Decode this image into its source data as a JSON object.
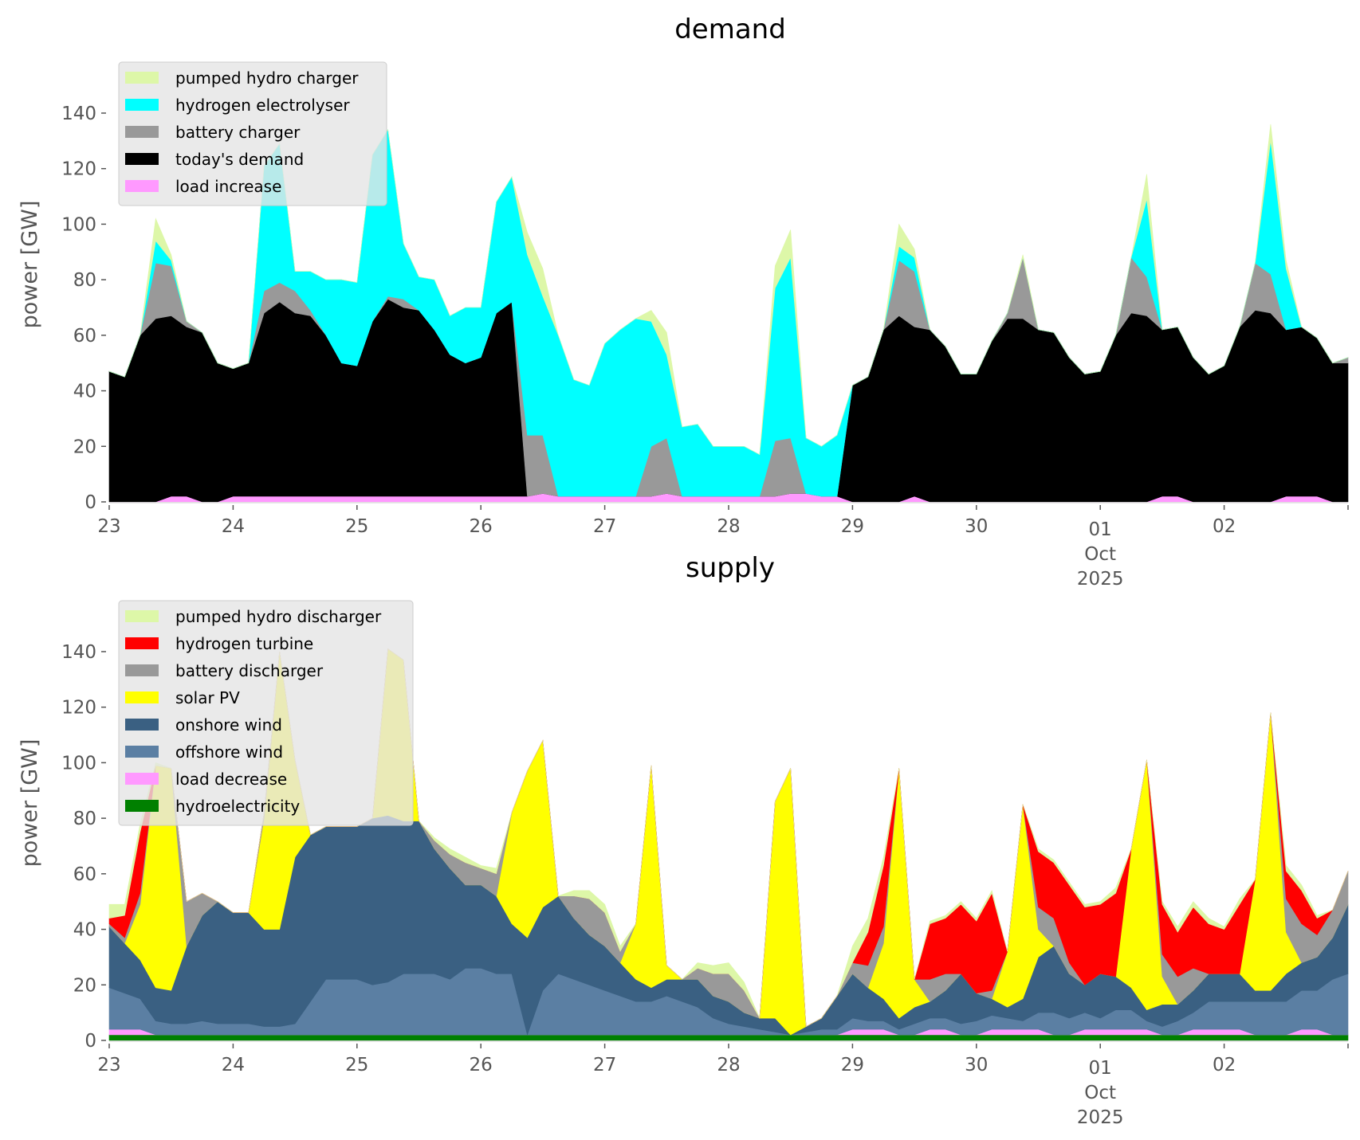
{
  "chart_data": [
    {
      "type": "area",
      "stacked": true,
      "title": "demand",
      "xlabel": "",
      "ylabel": "power [GW]",
      "ylim": [
        0,
        145
      ],
      "yticks": [
        "0",
        "20",
        "40",
        "60",
        "80",
        "100",
        "120",
        "140"
      ],
      "xticks": [
        "23",
        "24",
        "25",
        "26",
        "27",
        "28",
        "29",
        "30",
        "01",
        "02"
      ],
      "xtick_sub": {
        "01": [
          "Oct",
          "2025"
        ]
      },
      "x_resolution": "3h",
      "x_start": "2025-09-23 00:00",
      "legend_position": "top-left",
      "grid": false,
      "series": [
        {
          "name": "load increase",
          "color": "#ff99ff",
          "values": [
            0,
            0,
            0,
            0,
            2,
            2,
            0,
            0,
            2,
            2,
            2,
            2,
            2,
            2,
            2,
            2,
            2,
            2,
            2,
            2,
            2,
            2,
            2,
            2,
            2,
            2,
            2,
            2,
            3,
            2,
            2,
            2,
            2,
            2,
            2,
            2,
            3,
            2,
            2,
            2,
            2,
            2,
            2,
            2,
            3,
            3,
            2,
            2,
            0,
            0,
            0,
            0,
            2,
            0,
            0,
            0,
            0,
            0,
            0,
            0,
            0,
            0,
            0,
            0,
            0,
            0,
            0,
            0,
            2,
            2,
            0,
            0,
            0,
            0,
            0,
            0,
            2,
            2,
            2,
            0,
            0
          ]
        },
        {
          "name": "today's demand",
          "color": "#000000",
          "values": [
            47,
            45,
            60,
            66,
            65,
            61,
            61,
            50,
            46,
            48,
            66,
            70,
            66,
            65,
            58,
            48,
            47,
            63,
            71,
            68,
            67,
            60,
            51,
            48,
            50,
            66,
            70,
            0,
            0,
            0,
            0,
            0,
            0,
            0,
            0,
            0,
            0,
            0,
            0,
            0,
            0,
            0,
            0,
            0,
            0,
            0,
            0,
            0,
            42,
            45,
            62,
            67,
            61,
            62,
            56,
            46,
            46,
            58,
            66,
            66,
            62,
            61,
            52,
            46,
            47,
            60,
            68,
            67,
            60,
            61,
            52,
            46,
            49,
            63,
            69,
            68,
            60,
            61,
            57,
            50,
            50
          ]
        },
        {
          "name": "battery charger",
          "color": "#999999",
          "values": [
            0,
            0,
            0,
            20,
            18,
            2,
            0,
            0,
            0,
            0,
            8,
            7,
            8,
            2,
            0,
            0,
            0,
            0,
            1,
            3,
            0,
            0,
            0,
            0,
            0,
            0,
            0,
            22,
            21,
            0,
            0,
            0,
            0,
            0,
            0,
            18,
            20,
            0,
            0,
            0,
            0,
            0,
            0,
            20,
            20,
            0,
            0,
            0,
            0,
            0,
            0,
            20,
            20,
            0,
            0,
            0,
            0,
            0,
            2,
            22,
            0,
            0,
            0,
            0,
            0,
            0,
            20,
            14,
            0,
            0,
            0,
            0,
            0,
            0,
            17,
            14,
            0,
            0,
            0,
            0,
            2
          ]
        },
        {
          "name": "hydrogen electrolyser",
          "color": "#00ffff",
          "values": [
            0,
            0,
            0,
            8,
            2,
            0,
            0,
            0,
            0,
            0,
            45,
            50,
            7,
            14,
            20,
            30,
            30,
            60,
            60,
            20,
            12,
            18,
            14,
            20,
            18,
            40,
            45,
            65,
            50,
            58,
            42,
            40,
            55,
            60,
            64,
            45,
            30,
            25,
            26,
            18,
            18,
            18,
            15,
            55,
            65,
            20,
            18,
            22,
            0,
            0,
            0,
            5,
            5,
            0,
            0,
            0,
            0,
            0,
            0,
            0,
            0,
            0,
            0,
            0,
            0,
            0,
            0,
            28,
            0,
            0,
            0,
            0,
            0,
            0,
            0,
            48,
            22,
            0,
            0,
            0,
            0
          ]
        },
        {
          "name": "pumped hydro charger",
          "color": "#ddf7a8",
          "values": [
            0,
            0,
            0,
            8,
            2,
            0,
            0,
            0,
            0,
            0,
            0,
            0,
            0,
            0,
            0,
            0,
            0,
            0,
            0,
            0,
            0,
            0,
            0,
            0,
            0,
            0,
            0,
            8,
            10,
            0,
            0,
            0,
            0,
            0,
            0,
            4,
            8,
            0,
            0,
            0,
            0,
            0,
            0,
            8,
            10,
            0,
            0,
            0,
            0,
            0,
            0,
            8,
            3,
            0,
            0,
            0,
            0,
            0,
            0,
            1,
            0,
            0,
            0,
            0,
            0,
            0,
            0,
            9,
            0,
            0,
            0,
            0,
            0,
            0,
            0,
            6,
            3,
            0,
            0,
            0,
            0
          ]
        }
      ],
      "legend": [
        "pumped hydro charger",
        "hydrogen electrolyser",
        "battery charger",
        "today's demand",
        "load increase"
      ]
    },
    {
      "type": "area",
      "stacked": true,
      "title": "supply",
      "xlabel": "",
      "ylabel": "power [GW]",
      "ylim": [
        0,
        145
      ],
      "yticks": [
        "0",
        "20",
        "40",
        "60",
        "80",
        "100",
        "120",
        "140"
      ],
      "xticks": [
        "23",
        "24",
        "25",
        "26",
        "27",
        "28",
        "29",
        "30",
        "01",
        "02"
      ],
      "xtick_sub": {
        "01": [
          "Oct",
          "2025"
        ]
      },
      "x_resolution": "3h",
      "x_start": "2025-09-23 00:00",
      "legend_position": "top-left",
      "grid": false,
      "series": [
        {
          "name": "hydroelectricity",
          "color": "#008000",
          "values": [
            2,
            2,
            2,
            2,
            2,
            2,
            2,
            2,
            2,
            2,
            2,
            2,
            2,
            2,
            2,
            2,
            2,
            2,
            2,
            2,
            2,
            2,
            2,
            2,
            2,
            2,
            2,
            2,
            2,
            2,
            2,
            2,
            2,
            2,
            2,
            2,
            2,
            2,
            2,
            2,
            2,
            2,
            2,
            2,
            2,
            2,
            2,
            2,
            2,
            2,
            2,
            2,
            2,
            2,
            2,
            2,
            2,
            2,
            2,
            2,
            2,
            2,
            2,
            2,
            2,
            2,
            2,
            2,
            2,
            2,
            2,
            2,
            2,
            2,
            2,
            2,
            2,
            2,
            2,
            2,
            2
          ]
        },
        {
          "name": "load decrease",
          "color": "#ff99ff",
          "values": [
            2,
            2,
            2,
            0,
            0,
            0,
            0,
            0,
            0,
            0,
            0,
            0,
            0,
            0,
            0,
            0,
            0,
            0,
            0,
            0,
            0,
            0,
            0,
            0,
            0,
            0,
            0,
            0,
            0,
            0,
            0,
            0,
            0,
            0,
            0,
            0,
            0,
            0,
            0,
            0,
            0,
            0,
            0,
            0,
            0,
            0,
            0,
            0,
            2,
            2,
            2,
            0,
            0,
            2,
            2,
            0,
            0,
            2,
            2,
            2,
            2,
            0,
            0,
            2,
            2,
            2,
            2,
            2,
            0,
            0,
            2,
            2,
            2,
            2,
            0,
            0,
            0,
            2,
            2,
            0,
            0
          ]
        },
        {
          "name": "offshore wind",
          "color": "#5b7fa3",
          "values": [
            15,
            13,
            11,
            5,
            4,
            4,
            5,
            4,
            4,
            4,
            3,
            3,
            4,
            12,
            20,
            20,
            20,
            18,
            19,
            22,
            22,
            22,
            20,
            24,
            24,
            22,
            22,
            0,
            16,
            22,
            20,
            18,
            16,
            14,
            12,
            12,
            14,
            12,
            10,
            6,
            4,
            3,
            2,
            1,
            0,
            1,
            2,
            2,
            4,
            3,
            3,
            2,
            4,
            4,
            4,
            4,
            5,
            5,
            4,
            3,
            6,
            8,
            6,
            6,
            4,
            7,
            7,
            3,
            3,
            5,
            6,
            10,
            10,
            10,
            12,
            12,
            12,
            14,
            14,
            20,
            22
          ]
        },
        {
          "name": "onshore wind",
          "color": "#3a6082",
          "values": [
            22,
            18,
            14,
            12,
            12,
            28,
            38,
            44,
            40,
            40,
            35,
            35,
            60,
            60,
            55,
            55,
            55,
            60,
            60,
            55,
            55,
            45,
            40,
            30,
            30,
            28,
            18,
            35,
            30,
            28,
            22,
            18,
            16,
            12,
            8,
            5,
            6,
            8,
            10,
            8,
            8,
            5,
            4,
            5,
            0,
            2,
            4,
            12,
            16,
            12,
            8,
            4,
            6,
            6,
            10,
            18,
            10,
            6,
            4,
            8,
            20,
            24,
            16,
            10,
            16,
            12,
            8,
            4,
            8,
            6,
            8,
            10,
            10,
            10,
            4,
            4,
            10,
            10,
            12,
            15,
            25
          ]
        },
        {
          "name": "solar PV",
          "color": "#ffff00",
          "values": [
            0,
            0,
            20,
            80,
            80,
            0,
            0,
            0,
            0,
            0,
            40,
            100,
            35,
            0,
            0,
            0,
            0,
            0,
            60,
            58,
            0,
            0,
            0,
            0,
            0,
            0,
            40,
            60,
            60,
            0,
            0,
            0,
            0,
            0,
            20,
            80,
            5,
            0,
            0,
            0,
            0,
            0,
            0,
            78,
            96,
            0,
            0,
            0,
            0,
            0,
            20,
            90,
            10,
            0,
            0,
            0,
            0,
            0,
            20,
            70,
            10,
            0,
            0,
            0,
            0,
            0,
            50,
            90,
            10,
            0,
            0,
            0,
            0,
            0,
            40,
            100,
            15,
            0,
            0,
            0,
            0
          ]
        },
        {
          "name": "battery discharger",
          "color": "#999999",
          "values": [
            1,
            2,
            4,
            0,
            0,
            16,
            8,
            0,
            0,
            0,
            2,
            0,
            0,
            0,
            0,
            0,
            0,
            0,
            0,
            0,
            0,
            3,
            5,
            8,
            6,
            8,
            0,
            0,
            0,
            0,
            8,
            13,
            12,
            4,
            0,
            0,
            0,
            0,
            4,
            8,
            10,
            8,
            0,
            0,
            0,
            0,
            0,
            0,
            4,
            8,
            6,
            0,
            0,
            8,
            6,
            0,
            0,
            3,
            0,
            0,
            8,
            10,
            4,
            0,
            0,
            0,
            0,
            0,
            8,
            10,
            8,
            0,
            0,
            0,
            0,
            0,
            12,
            14,
            8,
            10,
            12
          ]
        },
        {
          "name": "hydrogen turbine",
          "color": "#ff0000",
          "values": [
            2,
            8,
            22,
            0,
            0,
            0,
            0,
            0,
            0,
            0,
            0,
            0,
            0,
            0,
            0,
            0,
            0,
            0,
            0,
            0,
            0,
            0,
            0,
            0,
            0,
            0,
            0,
            0,
            0,
            0,
            0,
            0,
            0,
            0,
            0,
            0,
            0,
            0,
            0,
            0,
            0,
            0,
            0,
            0,
            0,
            0,
            0,
            0,
            0,
            12,
            22,
            0,
            0,
            20,
            20,
            25,
            26,
            35,
            0,
            0,
            20,
            20,
            28,
            28,
            25,
            30,
            0,
            0,
            18,
            16,
            22,
            18,
            16,
            25,
            0,
            0,
            10,
            12,
            6,
            0,
            0
          ]
        },
        {
          "name": "pumped hydro discharger",
          "color": "#ddf7a8",
          "values": [
            5,
            4,
            3,
            1,
            0,
            0,
            0,
            0,
            0,
            0,
            0,
            0,
            0,
            0,
            0,
            0,
            0,
            0,
            0,
            0,
            0,
            1,
            2,
            2,
            1,
            2,
            0,
            0,
            0,
            0,
            2,
            3,
            3,
            2,
            0,
            0,
            0,
            0,
            2,
            3,
            4,
            3,
            0,
            0,
            0,
            0,
            0,
            0,
            6,
            5,
            3,
            0,
            0,
            1,
            1,
            1,
            1,
            1,
            0,
            0,
            1,
            1,
            1,
            1,
            1,
            2,
            0,
            0,
            1,
            2,
            2,
            2,
            1,
            2,
            0,
            0,
            2,
            2,
            1,
            0,
            0
          ]
        }
      ],
      "legend": [
        "pumped hydro discharger",
        "hydrogen turbine",
        "battery discharger",
        "solar PV",
        "onshore wind",
        "offshore wind",
        "load decrease",
        "hydroelectricity"
      ]
    }
  ]
}
